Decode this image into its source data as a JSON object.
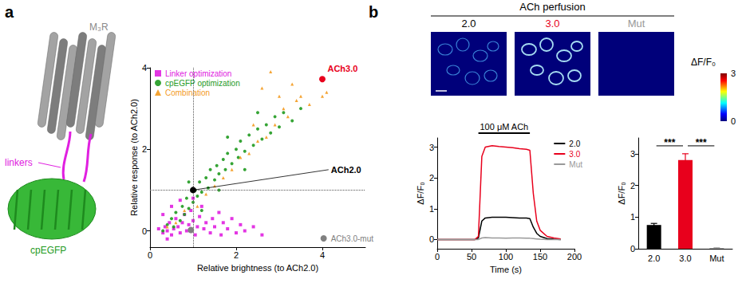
{
  "panel_labels": [
    "a",
    "b"
  ],
  "structure": {
    "receptor": "M₃R",
    "linker": "linkers",
    "fluorophore": "cpEGFP"
  },
  "images": {
    "title": "ACh perfusion",
    "panels": [
      {
        "label": "2.0",
        "color": "#000000"
      },
      {
        "label": "3.0",
        "color": "#e8001c"
      },
      {
        "label": "Mut",
        "color": "#999999"
      }
    ],
    "colorbar": {
      "label": "ΔF/F₀",
      "range": [
        0,
        3
      ],
      "ticks": [
        0,
        3
      ]
    }
  },
  "chart_data": [
    {
      "type": "scatter",
      "x_label": "Relative brightness (to ACh2.0)",
      "y_label": "Relative response (to ACh2.0)",
      "xlim": [
        0,
        5
      ],
      "xticks": [
        0,
        2,
        4
      ],
      "ylim": [
        -0.4,
        4
      ],
      "yticks": [
        0,
        2,
        4
      ],
      "grid": false,
      "legend": "top-left",
      "reference_lines": {
        "x": 1,
        "y": 1
      },
      "series": [
        {
          "name": "Linker optimization",
          "color": "#e020e0",
          "marker": "square",
          "x": [
            0.2,
            0.3,
            0.35,
            0.4,
            0.45,
            0.5,
            0.55,
            0.6,
            0.65,
            0.7,
            0.75,
            0.8,
            0.85,
            0.9,
            0.95,
            1.0,
            1.05,
            1.1,
            1.15,
            1.2,
            1.25,
            1.3,
            1.4,
            1.45,
            1.5,
            1.6,
            1.65,
            1.7,
            1.8,
            1.9,
            2.0,
            2.1,
            2.2,
            2.4,
            2.6,
            0.3,
            0.5,
            0.7,
            1.0,
            0.4
          ],
          "values": [
            0.05,
            -0.05,
            0.1,
            0.0,
            0.2,
            -0.1,
            0.05,
            0.3,
            0.1,
            -0.05,
            0.2,
            0.4,
            0.0,
            0.15,
            0.5,
            0.25,
            -0.1,
            0.1,
            0.35,
            0.6,
            0.05,
            0.2,
            -0.05,
            0.3,
            0.1,
            0.45,
            -0.1,
            0.2,
            0.05,
            0.3,
            -0.05,
            0.15,
            0.0,
            0.1,
            -0.1,
            0.4,
            0.6,
            0.75,
            0.8,
            -0.2
          ]
        },
        {
          "name": "cpEGFP optimization",
          "color": "#1f9a1f",
          "marker": "circle",
          "x": [
            0.3,
            0.4,
            0.5,
            0.55,
            0.6,
            0.7,
            0.75,
            0.8,
            0.85,
            0.9,
            1.0,
            1.05,
            1.1,
            1.15,
            1.2,
            1.3,
            1.35,
            1.4,
            1.5,
            1.55,
            1.6,
            1.7,
            1.75,
            1.8,
            1.9,
            2.0,
            2.05,
            2.1,
            2.2,
            2.3,
            2.4,
            2.5,
            2.6,
            2.7,
            2.8,
            2.9,
            3.0,
            3.1,
            3.3,
            3.5,
            1.2,
            1.6,
            2.2,
            0.9,
            1.8,
            2.5
          ],
          "values": [
            0.0,
            0.15,
            0.3,
            0.1,
            0.45,
            0.25,
            0.6,
            0.4,
            0.8,
            0.55,
            0.7,
            1.0,
            0.85,
            1.2,
            0.95,
            1.3,
            1.05,
            1.5,
            1.25,
            1.6,
            1.4,
            1.75,
            1.5,
            1.9,
            1.65,
            2.0,
            1.8,
            2.2,
            1.95,
            2.35,
            2.1,
            2.5,
            2.25,
            2.6,
            2.4,
            2.8,
            2.55,
            2.9,
            2.7,
            3.0,
            0.5,
            1.0,
            1.5,
            1.2,
            2.3,
            2.9
          ]
        },
        {
          "name": "Combination",
          "color": "#f39a1e",
          "marker": "triangle",
          "x": [
            0.4,
            0.6,
            0.8,
            1.1,
            1.3,
            1.5,
            1.7,
            1.9,
            2.1,
            2.3,
            2.5,
            2.7,
            2.8,
            2.9,
            3.1,
            3.2,
            3.4,
            3.5,
            3.7,
            4.0,
            4.1,
            3.0,
            2.6,
            2.4,
            3.3
          ],
          "values": [
            0.1,
            0.2,
            0.5,
            0.6,
            0.9,
            1.1,
            1.3,
            1.5,
            1.8,
            1.9,
            2.2,
            2.3,
            3.9,
            2.6,
            3.0,
            2.8,
            3.2,
            3.3,
            3.1,
            3.3,
            3.4,
            3.3,
            3.5,
            2.6,
            3.6
          ]
        },
        {
          "name": "ACh3.0-mut",
          "color": "#808080",
          "marker": "circle",
          "x": [
            0.95
          ],
          "values": [
            0.02
          ]
        },
        {
          "name": "ACh2.0",
          "color": "#000000",
          "marker": "circle",
          "x": [
            1.0
          ],
          "values": [
            1.0
          ]
        },
        {
          "name": "ACh3.0",
          "color": "#e8001c",
          "marker": "circle",
          "x": [
            4.0
          ],
          "values": [
            3.72
          ]
        }
      ],
      "annotations": [
        {
          "text": "ACh3.0",
          "x": 4.12,
          "y": 3.98
        },
        {
          "text": "ACh2.0",
          "x": 4.2,
          "y": 1.5
        }
      ]
    },
    {
      "type": "line",
      "x_label": "Time (s)",
      "y_label": "ΔF/F₀",
      "xlim": [
        0,
        200
      ],
      "xticks": [
        0,
        50,
        100,
        150,
        200
      ],
      "ylim": [
        -0.3,
        3.3
      ],
      "yticks": [
        0,
        1,
        2,
        3
      ],
      "grid": false,
      "legend": "top-right",
      "stimulus": {
        "label": "100 μM ACh",
        "x": [
          60,
          135
        ]
      },
      "x": [
        0,
        10,
        20,
        30,
        40,
        50,
        55,
        60,
        65,
        70,
        80,
        90,
        100,
        110,
        120,
        130,
        135,
        140,
        145,
        150,
        160,
        170,
        180
      ],
      "series": [
        {
          "name": "2.0",
          "color": "#000000",
          "values": [
            0,
            0,
            0,
            0,
            0,
            0,
            0,
            0.05,
            0.6,
            0.7,
            0.72,
            0.72,
            0.72,
            0.71,
            0.7,
            0.7,
            0.68,
            0.4,
            0.2,
            0.1,
            0.03,
            0.01,
            0
          ]
        },
        {
          "name": "3.0",
          "color": "#e8001c",
          "values": [
            0,
            0,
            0,
            0,
            0,
            0,
            0,
            0.1,
            2.7,
            3.0,
            3.05,
            3.02,
            3.0,
            2.98,
            2.95,
            2.93,
            2.9,
            1.5,
            0.6,
            0.3,
            0.1,
            0.05,
            0.02
          ]
        },
        {
          "name": "Mut",
          "color": "#999999",
          "values": [
            0,
            0,
            0,
            0,
            0,
            0,
            0,
            0,
            0.05,
            0.06,
            0.05,
            0.05,
            0.04,
            0.05,
            0.05,
            0.04,
            0.04,
            0.03,
            0.02,
            0.01,
            0,
            0,
            0
          ]
        }
      ]
    },
    {
      "type": "bar",
      "y_label": "ΔF/F₀",
      "categories": [
        "2.0",
        "3.0",
        "Mut"
      ],
      "values": [
        0.75,
        2.8,
        0.02
      ],
      "errors": [
        0.05,
        0.2,
        0.01
      ],
      "colors": [
        "#000000",
        "#e8001c",
        "#999999"
      ],
      "ylim": [
        0,
        3.5
      ],
      "yticks": [
        0,
        1,
        2,
        3
      ],
      "grid": false,
      "significance": [
        {
          "between": [
            "2.0",
            "3.0"
          ],
          "label": "***",
          "y": 3.25
        },
        {
          "between": [
            "3.0",
            "Mut"
          ],
          "label": "***",
          "y": 3.25
        }
      ]
    }
  ]
}
